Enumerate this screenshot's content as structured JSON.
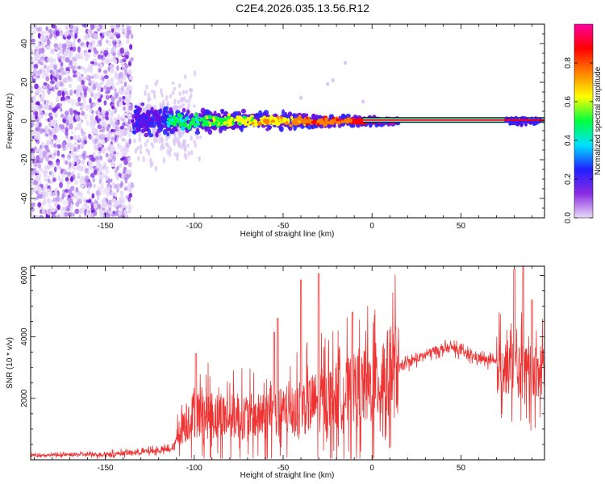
{
  "title": "C2E4.2026.035.13.56.R12",
  "chart_data": [
    {
      "type": "heatmap",
      "xlabel": "Height of straight line (km)",
      "ylabel": "Frequency (Hz)",
      "xlim": [
        -192,
        97
      ],
      "ylim": [
        -50,
        50
      ],
      "xticks": [
        -150,
        -100,
        -50,
        0,
        50
      ],
      "yticks": [
        -40,
        -20,
        0,
        20,
        40
      ],
      "colorbar": {
        "label": "Normalized spectral amplitude",
        "range": [
          0,
          1
        ],
        "ticks": [
          0,
          0.2,
          0.4,
          0.6,
          0.8
        ],
        "tick_labels": [
          "0.0",
          "0.2",
          "0.4",
          "0.6",
          "0.8"
        ],
        "colors": [
          "#e8dcf8",
          "#8a2be2",
          "#2020ff",
          "#00e0ff",
          "#00ff40",
          "#ffff00",
          "#ff8000",
          "#ff0000",
          "#ff00a0"
        ]
      },
      "features": {
        "noise_region_x": [
          -192,
          -135
        ],
        "scatter_spread_x": [
          -135,
          -105
        ],
        "signal_band_x": [
          -135,
          15
        ],
        "line_x": [
          -5,
          97
        ],
        "line_frequency_hz": 0.5,
        "bright_blob_x": [
          75,
          95
        ]
      }
    },
    {
      "type": "line",
      "xlabel": "Height of straight line (km)",
      "ylabel": "SNR (10 * v/v)",
      "xlim": [
        -192,
        97
      ],
      "ylim": [
        0,
        6300
      ],
      "xticks": [
        -150,
        -100,
        -50,
        0,
        50
      ],
      "yticks": [
        2000,
        4000,
        6000
      ],
      "series_color": "#ee3333",
      "profile": [
        {
          "x": -192,
          "y": 150
        },
        {
          "x": -150,
          "y": 180
        },
        {
          "x": -130,
          "y": 250
        },
        {
          "x": -112,
          "y": 350
        },
        {
          "x": -108,
          "y": 1000
        },
        {
          "x": -100,
          "y": 1500
        },
        {
          "x": -80,
          "y": 1400
        },
        {
          "x": -60,
          "y": 1400
        },
        {
          "x": -45,
          "y": 1600
        },
        {
          "x": -30,
          "y": 1900
        },
        {
          "x": -15,
          "y": 2150
        },
        {
          "x": 0,
          "y": 2400
        },
        {
          "x": 10,
          "y": 2800
        },
        {
          "x": 20,
          "y": 3150
        },
        {
          "x": 35,
          "y": 3550
        },
        {
          "x": 45,
          "y": 3650
        },
        {
          "x": 55,
          "y": 3400
        },
        {
          "x": 70,
          "y": 3150
        },
        {
          "x": 80,
          "y": 2900
        },
        {
          "x": 90,
          "y": 2800
        },
        {
          "x": 97,
          "y": 3050
        }
      ],
      "spikes": [
        {
          "x": -99,
          "y": 3450
        },
        {
          "x": -55,
          "y": 4150
        },
        {
          "x": -53,
          "y": 4600
        },
        {
          "x": -40,
          "y": 5850
        },
        {
          "x": -30,
          "y": 6050
        },
        {
          "x": -11,
          "y": 4800
        },
        {
          "x": 80,
          "y": 6200
        },
        {
          "x": 85,
          "y": 6300
        },
        {
          "x": 90,
          "y": 5200
        }
      ]
    }
  ]
}
